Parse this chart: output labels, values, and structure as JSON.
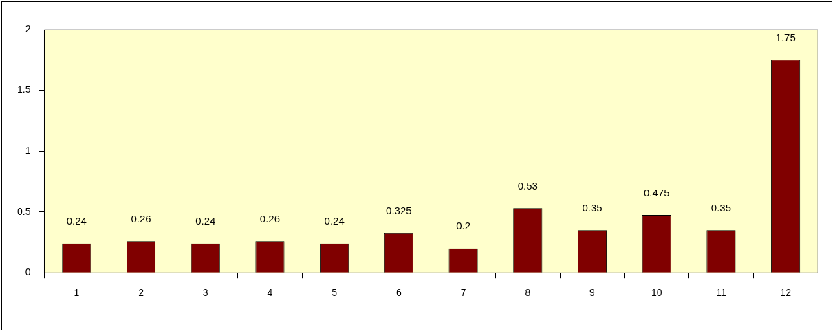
{
  "chart_data": {
    "type": "bar",
    "categories": [
      "1",
      "2",
      "3",
      "4",
      "5",
      "6",
      "7",
      "8",
      "9",
      "10",
      "11",
      "12"
    ],
    "values": [
      0.24,
      0.26,
      0.24,
      0.26,
      0.24,
      0.325,
      0.2,
      0.53,
      0.35,
      0.475,
      0.35,
      1.75
    ],
    "color": "#800000",
    "ylim": [
      0,
      2
    ],
    "yticks": [
      0,
      0.5,
      1,
      1.5,
      2
    ],
    "grid": false,
    "legend": false,
    "data_labels": true
  }
}
